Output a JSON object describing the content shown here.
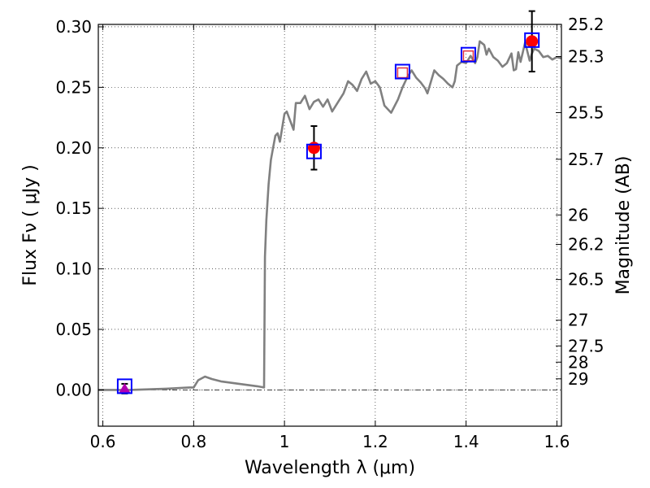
{
  "chart_data": {
    "type": "scatter",
    "xlabel": "Wavelength  λ (μm)",
    "ylabel": "Flux  Fν  ( μJy )",
    "y2label": "Magnitude (AB)",
    "xlim": [
      0.59,
      1.61
    ],
    "ylim": [
      -0.03,
      0.302
    ],
    "grid": true,
    "grid_style": "dotted",
    "zero_line": true,
    "x_ticks": [
      0.6,
      0.8,
      1.0,
      1.2,
      1.4,
      1.6
    ],
    "x_tick_labels": [
      "0.6",
      "0.8",
      "1",
      "1.2",
      "1.4",
      "1.6"
    ],
    "y_ticks": [
      0.0,
      0.05,
      0.1,
      0.15,
      0.2,
      0.25,
      0.3
    ],
    "y_tick_labels": [
      "0.00",
      "0.05",
      "0.10",
      "0.15",
      "0.20",
      "0.25",
      "0.30"
    ],
    "magnitude_ticks": [
      {
        "label": "25.2",
        "mag": 25.2
      },
      {
        "label": "25.3",
        "mag": 25.3
      },
      {
        "label": "25.5",
        "mag": 25.5
      },
      {
        "label": "25.7",
        "mag": 25.7
      },
      {
        "label": "26",
        "mag": 26.0
      },
      {
        "label": "26.2",
        "mag": 26.2
      },
      {
        "label": "26.5",
        "mag": 26.5
      },
      {
        "label": "27",
        "mag": 27.0
      },
      {
        "label": "27.5",
        "mag": 27.5
      },
      {
        "label": "28",
        "mag": 28.0
      },
      {
        "label": "29",
        "mag": 29.0
      }
    ],
    "model_spectrum": {
      "color": "#808080",
      "x": [
        0.59,
        0.66,
        0.74,
        0.79,
        0.8,
        0.81,
        0.825,
        0.84,
        0.86,
        0.88,
        0.9,
        0.92,
        0.94,
        0.955,
        0.957,
        0.96,
        0.965,
        0.97,
        0.975,
        0.98,
        0.985,
        0.99,
        1.0,
        1.005,
        1.01,
        1.02,
        1.025,
        1.035,
        1.045,
        1.055,
        1.065,
        1.075,
        1.085,
        1.095,
        1.105,
        1.12,
        1.13,
        1.14,
        1.15,
        1.16,
        1.17,
        1.18,
        1.19,
        1.2,
        1.21,
        1.22,
        1.235,
        1.25,
        1.26,
        1.27,
        1.28,
        1.29,
        1.3,
        1.31,
        1.315,
        1.33,
        1.34,
        1.35,
        1.36,
        1.37,
        1.375,
        1.38,
        1.39,
        1.4,
        1.41,
        1.42,
        1.425,
        1.43,
        1.44,
        1.445,
        1.45,
        1.46,
        1.47,
        1.48,
        1.49,
        1.5,
        1.505,
        1.51,
        1.515,
        1.52,
        1.53,
        1.54,
        1.545,
        1.55,
        1.56,
        1.57,
        1.58,
        1.59,
        1.6,
        1.61
      ],
      "y": [
        0.0,
        0.0,
        0.001,
        0.002,
        0.002,
        0.008,
        0.011,
        0.009,
        0.007,
        0.006,
        0.005,
        0.004,
        0.003,
        0.002,
        0.11,
        0.14,
        0.17,
        0.19,
        0.2,
        0.21,
        0.212,
        0.205,
        0.228,
        0.23,
        0.225,
        0.215,
        0.237,
        0.237,
        0.243,
        0.232,
        0.238,
        0.24,
        0.234,
        0.24,
        0.23,
        0.239,
        0.245,
        0.255,
        0.252,
        0.247,
        0.257,
        0.263,
        0.253,
        0.255,
        0.25,
        0.235,
        0.229,
        0.24,
        0.25,
        0.258,
        0.264,
        0.258,
        0.254,
        0.249,
        0.245,
        0.264,
        0.26,
        0.257,
        0.253,
        0.25,
        0.255,
        0.268,
        0.271,
        0.27,
        0.276,
        0.27,
        0.275,
        0.288,
        0.285,
        0.277,
        0.282,
        0.275,
        0.272,
        0.267,
        0.27,
        0.278,
        0.264,
        0.265,
        0.279,
        0.271,
        0.287,
        0.272,
        0.278,
        0.282,
        0.28,
        0.275,
        0.276,
        0.273,
        0.275,
        0.274
      ]
    },
    "observed": {
      "marker": "circle",
      "color": "#ff0000",
      "points": [
        {
          "x": 1.065,
          "y": 0.2,
          "yerr": 0.018
        },
        {
          "x": 1.545,
          "y": 0.288,
          "yerr": 0.025
        }
      ]
    },
    "upper_limits": {
      "marker": "triangle",
      "color": "#b000b0",
      "points": [
        {
          "x": 0.648,
          "y": 0.001,
          "yerr": 0.004
        }
      ]
    },
    "model_photometry": {
      "marker": "open-square",
      "color": "#0000ff",
      "points": [
        {
          "x": 0.648,
          "y": 0.003
        },
        {
          "x": 1.065,
          "y": 0.197
        },
        {
          "x": 1.26,
          "y": 0.263
        },
        {
          "x": 1.405,
          "y": 0.277
        },
        {
          "x": 1.545,
          "y": 0.289
        }
      ]
    },
    "predicted": {
      "marker": "open-square-small",
      "color": "#e03040",
      "points": [
        {
          "x": 1.26,
          "y": 0.262
        },
        {
          "x": 1.405,
          "y": 0.276
        }
      ]
    }
  }
}
